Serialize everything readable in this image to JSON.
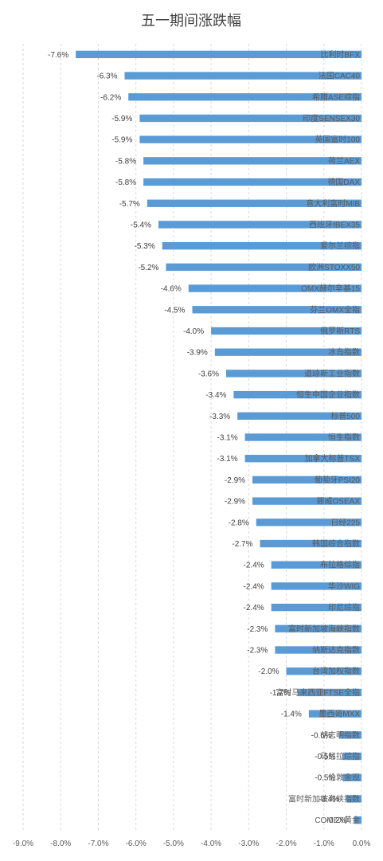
{
  "chart_data": {
    "type": "bar",
    "orientation": "horizontal",
    "title": "五一期间涨跌幅",
    "categories": [
      "比利时BFX",
      "法国CAC40",
      "希腊ASE综指",
      "印度SENSEX30",
      "英国富时100",
      "荷兰AEX",
      "德国DAX",
      "意大利富时MIB",
      "西班牙IBEX35",
      "爱尔兰综指",
      "欧洲STOXX50",
      "OMX赫尔辛基15",
      "芬兰OMX全指",
      "俄罗斯RTS",
      "冰岛指数",
      "道琼斯工业指数",
      "恒生中国企业指数",
      "标普500",
      "恒生指数",
      "加拿大标普TSX",
      "葡萄牙PSI20",
      "挪威OSEAX",
      "日经225",
      "韩国综合指数",
      "布拉格综指",
      "华沙WIG",
      "印尼综指",
      "富时新加坡海峡指数",
      "纳斯达克指数",
      "台湾加权指数",
      "富时马来西亚FTSE全指",
      "墨西哥MXX",
      "胡志明指数",
      "马尼拉综指",
      "伦敦金现",
      "富时新加坡海峡指数",
      "COMEX黄金"
    ],
    "values": [
      -7.6,
      -6.3,
      -6.2,
      -5.9,
      -5.9,
      -5.8,
      -5.8,
      -5.7,
      -5.4,
      -5.3,
      -5.2,
      -4.6,
      -4.5,
      -4.0,
      -3.9,
      -3.6,
      -3.4,
      -3.3,
      -3.1,
      -3.1,
      -2.9,
      -2.9,
      -2.8,
      -2.7,
      -2.4,
      -2.4,
      -2.4,
      -2.3,
      -2.3,
      -2.0,
      -1.7,
      -1.4,
      -0.6,
      -0.5,
      -0.5,
      -0.4,
      -0.2
    ],
    "data_labels": [
      "-7.6%",
      "-6.3%",
      "-6.2%",
      "-5.9%",
      "-5.9%",
      "-5.8%",
      "-5.8%",
      "-5.7%",
      "-5.4%",
      "-5.3%",
      "-5.2%",
      "-4.6%",
      "-4.5%",
      "-4.0%",
      "-3.9%",
      "-3.6%",
      "-3.4%",
      "-3.3%",
      "-3.1%",
      "-3.1%",
      "-2.9%",
      "-2.9%",
      "-2.8%",
      "-2.7%",
      "-2.4%",
      "-2.4%",
      "-2.4%",
      "-2.3%",
      "-2.3%",
      "-2.0%",
      "-1.7%",
      "-1.4%",
      "-0.6%",
      "-0.5%",
      "-0.5%",
      "-0.4%",
      "-0.2%"
    ],
    "x_ticks": [
      "-9.0%",
      "-8.0%",
      "-7.0%",
      "-6.0%",
      "-5.0%",
      "-4.0%",
      "-3.0%",
      "-2.0%",
      "-1.0%",
      "0.0%"
    ],
    "x_tick_values": [
      -9,
      -8,
      -7,
      -6,
      -5,
      -4,
      -3,
      -2,
      -1,
      0
    ],
    "xlim": [
      -9,
      0
    ],
    "xlabel": "",
    "ylabel": "",
    "grid": true,
    "legend": false,
    "bar_color": "#5b9bd5"
  }
}
